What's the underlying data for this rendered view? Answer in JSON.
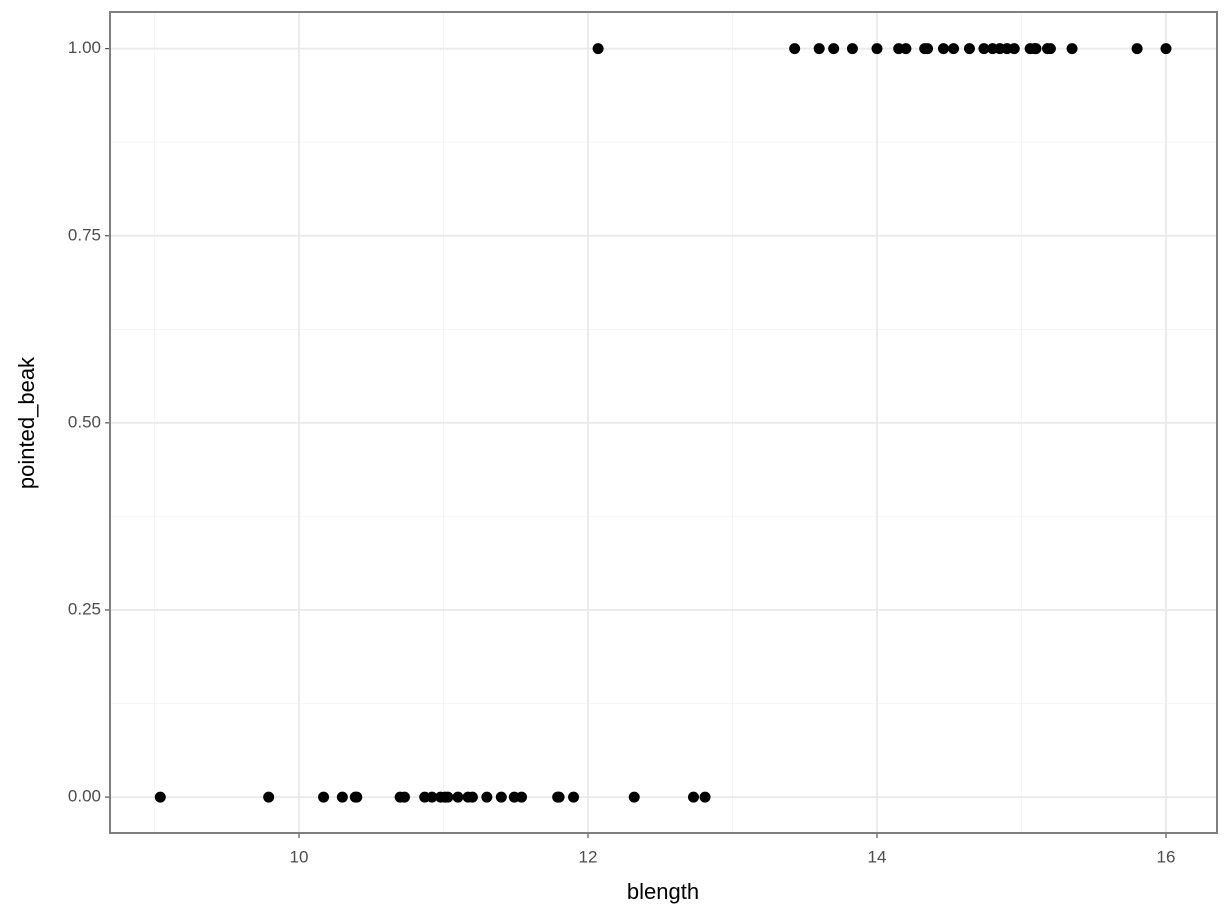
{
  "chart_data": {
    "type": "scatter",
    "x_label": "blength",
    "y_label": "pointed_beak",
    "color": "#000000",
    "x": [
      9.04,
      9.79,
      10.17,
      10.3,
      10.39,
      10.4,
      10.7,
      10.73,
      10.87,
      10.92,
      10.98,
      11.01,
      11.03,
      11.1,
      11.17,
      11.2,
      11.3,
      11.4,
      11.49,
      11.54,
      11.79,
      11.8,
      11.9,
      12.32,
      12.73,
      12.81,
      12.07,
      13.43,
      13.6,
      13.7,
      13.83,
      14.0,
      14.15,
      14.2,
      14.33,
      14.35,
      14.46,
      14.53,
      14.64,
      14.74,
      14.8,
      14.85,
      14.9,
      14.95,
      15.06,
      15.09,
      15.1,
      15.18,
      15.2,
      15.35,
      15.8,
      16.0
    ],
    "values": [
      0,
      0,
      0,
      0,
      0,
      0,
      0,
      0,
      0,
      0,
      0,
      0,
      0,
      0,
      0,
      0,
      0,
      0,
      0,
      0,
      0,
      0,
      0,
      0,
      0,
      0,
      1,
      1,
      1,
      1,
      1,
      1,
      1,
      1,
      1,
      1,
      1,
      1,
      1,
      1,
      1,
      1,
      1,
      1,
      1,
      1,
      1,
      1,
      1,
      1,
      1,
      1
    ],
    "xlim": [
      8.692,
      16.353
    ],
    "ylim": [
      -0.048,
      1.049
    ],
    "xticks": [
      10,
      12,
      14,
      16
    ],
    "yticks": [
      {
        "value": 0,
        "label": "0.00"
      },
      {
        "value": 0.25,
        "label": "0.25"
      },
      {
        "value": 0.5,
        "label": "0.50"
      },
      {
        "value": 0.75,
        "label": "0.75"
      },
      {
        "value": 1,
        "label": "1.00"
      }
    ],
    "x_minor_ticks": [
      9,
      11,
      13,
      15
    ],
    "y_minor_ticks": [
      0.125,
      0.375,
      0.625,
      0.875
    ],
    "grid": true
  }
}
